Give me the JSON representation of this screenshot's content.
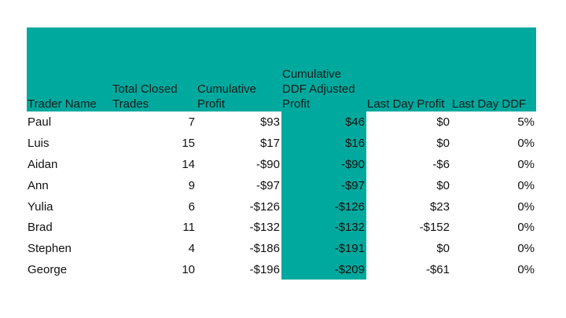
{
  "table": {
    "columns": [
      "Trader Name",
      "Total Closed Trades",
      "Cumulative Profit",
      "Cumulative DDF Adjusted Profit",
      "Last Day Profit",
      "Last Day DDF"
    ],
    "rows": [
      [
        "Paul",
        "7",
        "$93",
        "$46",
        "$0",
        "5%"
      ],
      [
        "Luis",
        "15",
        "$17",
        "$16",
        "$0",
        "0%"
      ],
      [
        "Aidan",
        "14",
        "-$90",
        "-$90",
        "-$6",
        "0%"
      ],
      [
        "Ann",
        "9",
        "-$97",
        "-$97",
        "$0",
        "0%"
      ],
      [
        "Yulia",
        "6",
        "-$126",
        "-$126",
        "$23",
        "0%"
      ],
      [
        "Brad",
        "11",
        "-$132",
        "-$132",
        "-$152",
        "0%"
      ],
      [
        "Stephen",
        "4",
        "-$186",
        "-$191",
        "$0",
        "0%"
      ],
      [
        "George",
        "10",
        "-$196",
        "-$209",
        "-$61",
        "0%"
      ]
    ]
  },
  "colors": {
    "header_band": "#00a99d",
    "highlight_column": "#00a99d",
    "text": "#111111"
  }
}
